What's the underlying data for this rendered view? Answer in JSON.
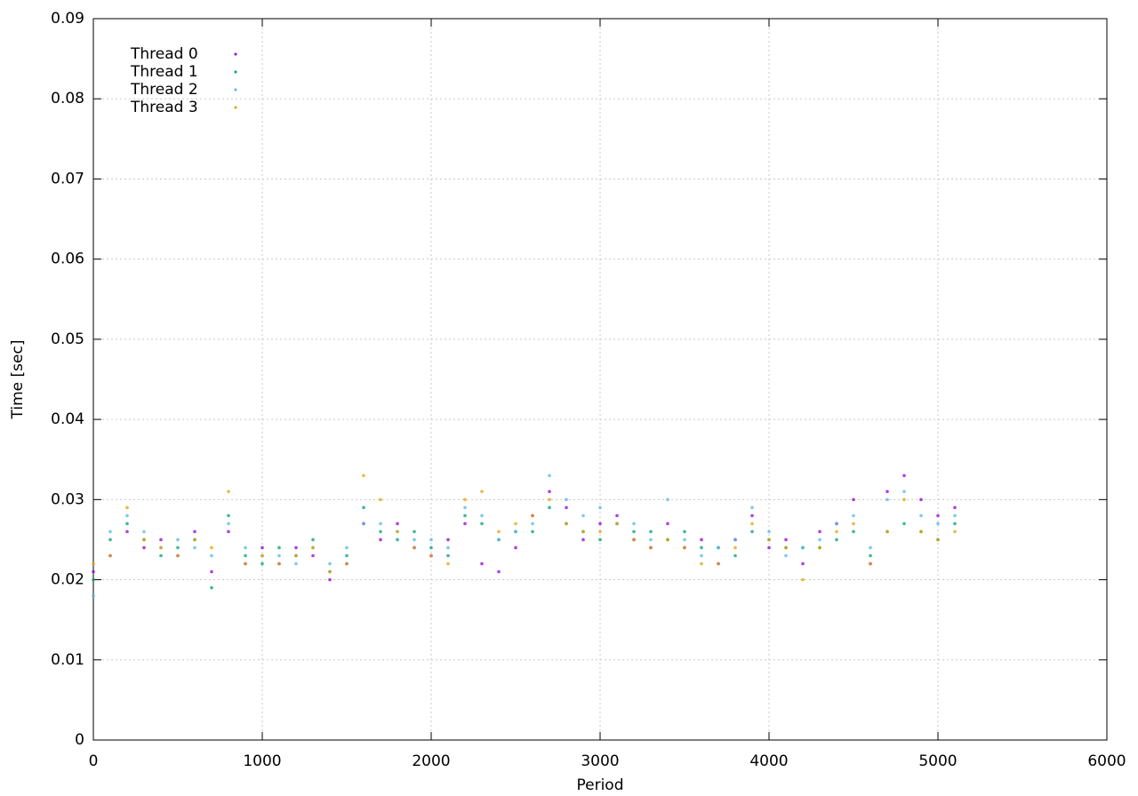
{
  "chart_data": {
    "type": "scatter",
    "xlabel": "Period",
    "ylabel": "Time [sec]",
    "xlim": [
      0,
      6000
    ],
    "xticks": [
      0,
      1000,
      2000,
      3000,
      4000,
      5000,
      6000
    ],
    "ylim": [
      0,
      0.09
    ],
    "yticks": [
      0,
      0.01,
      0.02,
      0.03,
      0.04,
      0.05,
      0.06,
      0.07,
      0.08,
      0.09
    ],
    "grid": true,
    "legend": "top-left",
    "x": [
      0,
      100,
      200,
      300,
      400,
      500,
      600,
      700,
      800,
      900,
      1000,
      1100,
      1200,
      1300,
      1400,
      1500,
      1600,
      1700,
      1800,
      1900,
      2000,
      2100,
      2200,
      2300,
      2400,
      2500,
      2600,
      2700,
      2800,
      2900,
      3000,
      3100,
      3200,
      3300,
      3400,
      3500,
      3600,
      3700,
      3800,
      3900,
      4000,
      4100,
      4200,
      4300,
      4400,
      4500,
      4600,
      4700,
      4800,
      4900,
      5000,
      5100
    ],
    "series": [
      {
        "name": "Thread 0",
        "color": "#9400d3",
        "values": [
          0.021,
          0.023,
          0.026,
          0.024,
          0.025,
          0.023,
          0.026,
          0.021,
          0.026,
          0.022,
          0.024,
          0.022,
          0.024,
          0.023,
          0.02,
          0.022,
          0.027,
          0.025,
          0.027,
          0.024,
          0.023,
          0.025,
          0.027,
          0.022,
          0.021,
          0.024,
          0.028,
          0.031,
          0.029,
          0.025,
          0.027,
          0.028,
          0.025,
          0.024,
          0.027,
          0.024,
          0.025,
          0.022,
          0.025,
          0.028,
          0.024,
          0.025,
          0.022,
          0.026,
          0.027,
          0.03,
          0.022,
          0.031,
          0.033,
          0.03,
          0.028,
          0.029
        ]
      },
      {
        "name": "Thread 1",
        "color": "#009e73",
        "values": [
          0.02,
          0.025,
          0.027,
          0.025,
          0.023,
          0.024,
          0.025,
          0.019,
          0.028,
          0.023,
          0.022,
          0.024,
          0.023,
          0.025,
          0.021,
          0.023,
          0.029,
          0.026,
          0.025,
          0.026,
          0.024,
          0.023,
          0.028,
          0.027,
          0.025,
          0.026,
          0.026,
          0.029,
          0.027,
          0.026,
          0.025,
          0.027,
          0.026,
          0.026,
          0.025,
          0.026,
          0.024,
          0.024,
          0.023,
          0.026,
          0.025,
          0.024,
          0.024,
          0.024,
          0.025,
          0.026,
          0.023,
          0.026,
          0.027,
          0.026,
          0.025,
          0.027
        ]
      },
      {
        "name": "Thread 2",
        "color": "#56b4e9",
        "values": [
          0.018,
          0.026,
          0.028,
          0.026,
          0.024,
          0.025,
          0.024,
          0.023,
          0.027,
          0.024,
          0.023,
          0.023,
          0.022,
          0.024,
          0.022,
          0.024,
          0.027,
          0.027,
          0.026,
          0.025,
          0.025,
          0.024,
          0.029,
          0.028,
          0.025,
          0.026,
          0.027,
          0.033,
          0.03,
          0.028,
          0.029,
          0.027,
          0.027,
          0.025,
          0.03,
          0.025,
          0.023,
          0.024,
          0.025,
          0.029,
          0.026,
          0.023,
          0.024,
          0.025,
          0.027,
          0.028,
          0.024,
          0.03,
          0.031,
          0.028,
          0.027,
          0.028
        ]
      },
      {
        "name": "Thread 3",
        "color": "#e69f00",
        "values": [
          0.022,
          0.023,
          0.029,
          0.025,
          0.024,
          0.023,
          0.025,
          0.024,
          0.031,
          0.022,
          0.023,
          0.022,
          0.023,
          0.024,
          0.021,
          0.022,
          0.033,
          0.03,
          0.026,
          0.024,
          0.023,
          0.022,
          0.03,
          0.031,
          0.026,
          0.027,
          0.028,
          0.03,
          0.027,
          0.026,
          0.026,
          0.027,
          0.025,
          0.024,
          0.025,
          0.024,
          0.022,
          0.022,
          0.024,
          0.027,
          0.025,
          0.024,
          0.02,
          0.024,
          0.026,
          0.027,
          0.022,
          0.026,
          0.03,
          0.026,
          0.025,
          0.026
        ]
      }
    ]
  }
}
